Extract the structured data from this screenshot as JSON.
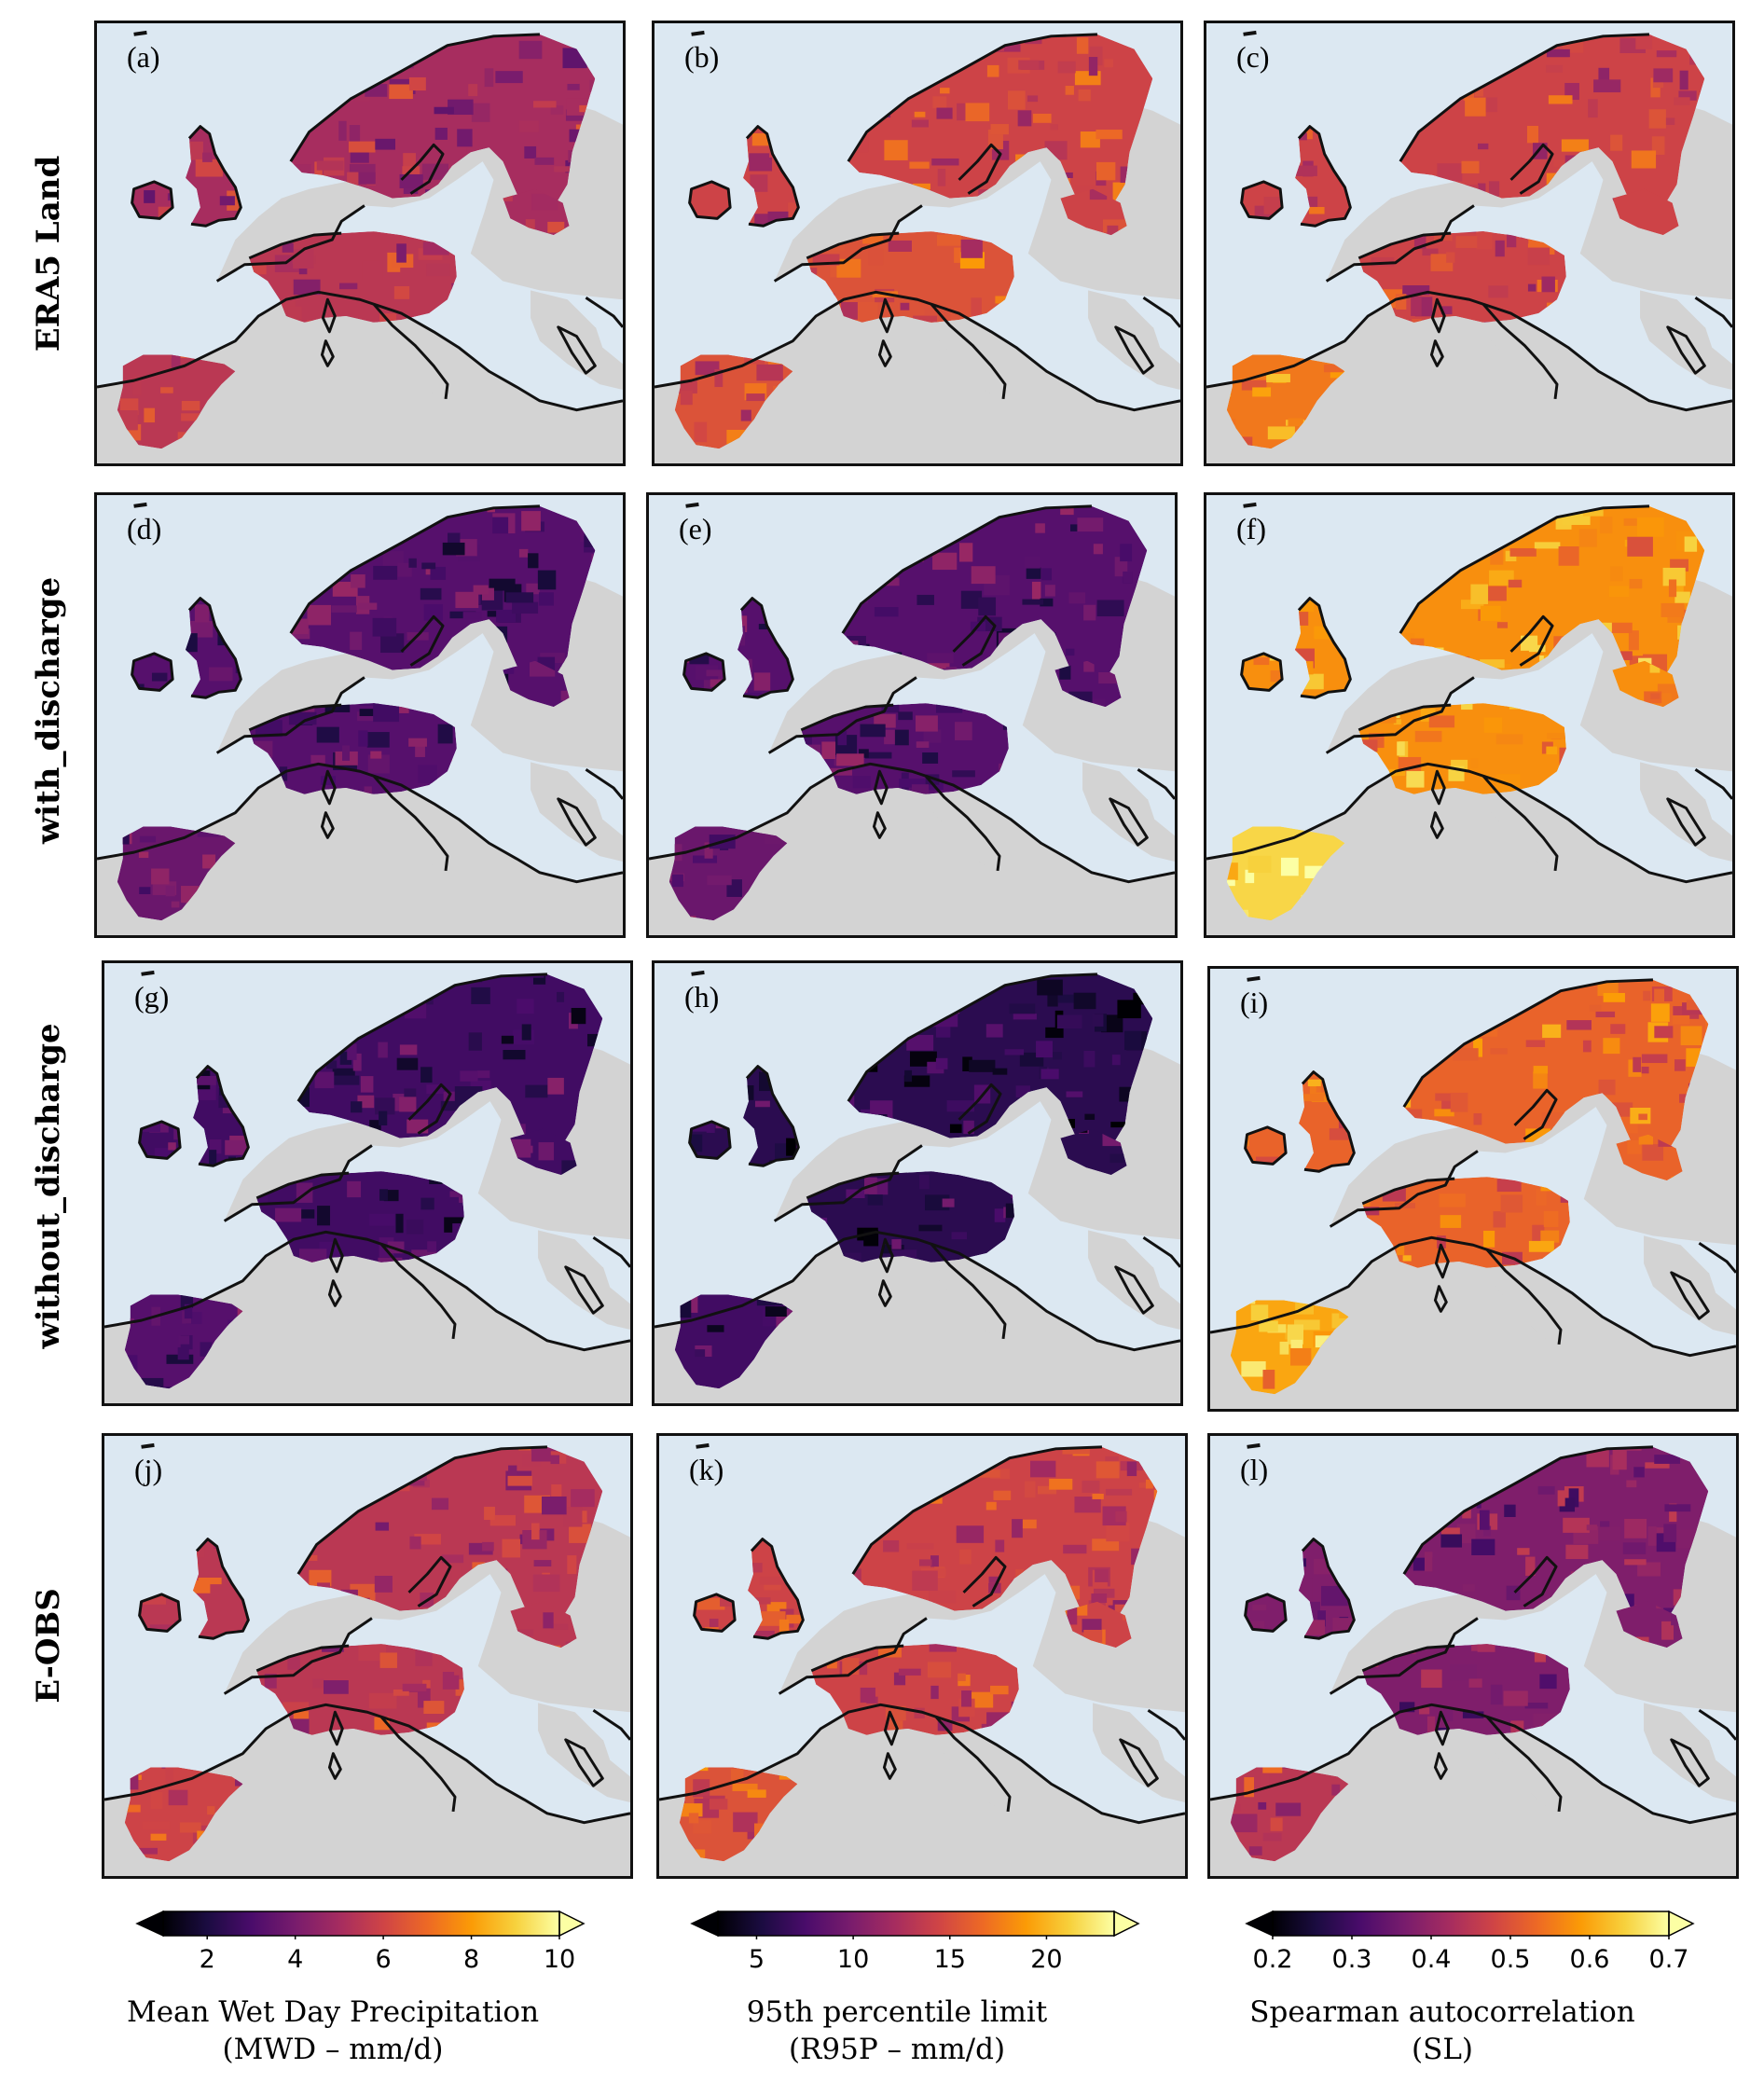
{
  "rows": [
    {
      "label": "ERA5 Land",
      "panels": [
        "(a)",
        "(b)",
        "(c)"
      ]
    },
    {
      "label": "with_discharge",
      "panels": [
        "(d)",
        "(e)",
        "(f)"
      ]
    },
    {
      "label": "without_discharge",
      "panels": [
        "(g)",
        "(h)",
        "(i)"
      ]
    },
    {
      "label": "E-OBS",
      "panels": [
        "(j)",
        "(k)",
        "(l)"
      ]
    }
  ],
  "colorbars": [
    {
      "ticks": [
        "2",
        "4",
        "6",
        "8",
        "10"
      ],
      "tick_values": [
        2,
        4,
        6,
        8,
        10
      ],
      "range": [
        1,
        10
      ],
      "title": "Mean Wet Day Precipitation",
      "subtitle": "(MWD – mm/d)"
    },
    {
      "ticks": [
        "5",
        "10",
        "15",
        "20"
      ],
      "tick_values": [
        5,
        10,
        15,
        20
      ],
      "range": [
        3,
        23.5
      ],
      "title": "95th percentile limit",
      "subtitle": "(R95P – mm/d)"
    },
    {
      "ticks": [
        "0.2",
        "0.3",
        "0.4",
        "0.5",
        "0.6",
        "0.7"
      ],
      "tick_values": [
        0.2,
        0.3,
        0.4,
        0.5,
        0.6,
        0.7
      ],
      "range": [
        0.2,
        0.7
      ],
      "title": "Spearman autocorrelation",
      "subtitle": "(SL)"
    }
  ],
  "colors": {
    "sea": "#dce8f2",
    "land": "#d3d3d3",
    "coast": "#111111",
    "colormap": [
      "#000004",
      "#1b0c41",
      "#4a0c6b",
      "#781c6d",
      "#a52c60",
      "#cf4446",
      "#ed6925",
      "#fb9b06",
      "#f7d13d",
      "#fcffa4"
    ]
  },
  "panel_fill_levels": [
    [
      0.45,
      0.55,
      0.55
    ],
    [
      0.25,
      0.25,
      0.75
    ],
    [
      0.2,
      0.15,
      0.65
    ],
    [
      0.5,
      0.55,
      0.35
    ]
  ]
}
